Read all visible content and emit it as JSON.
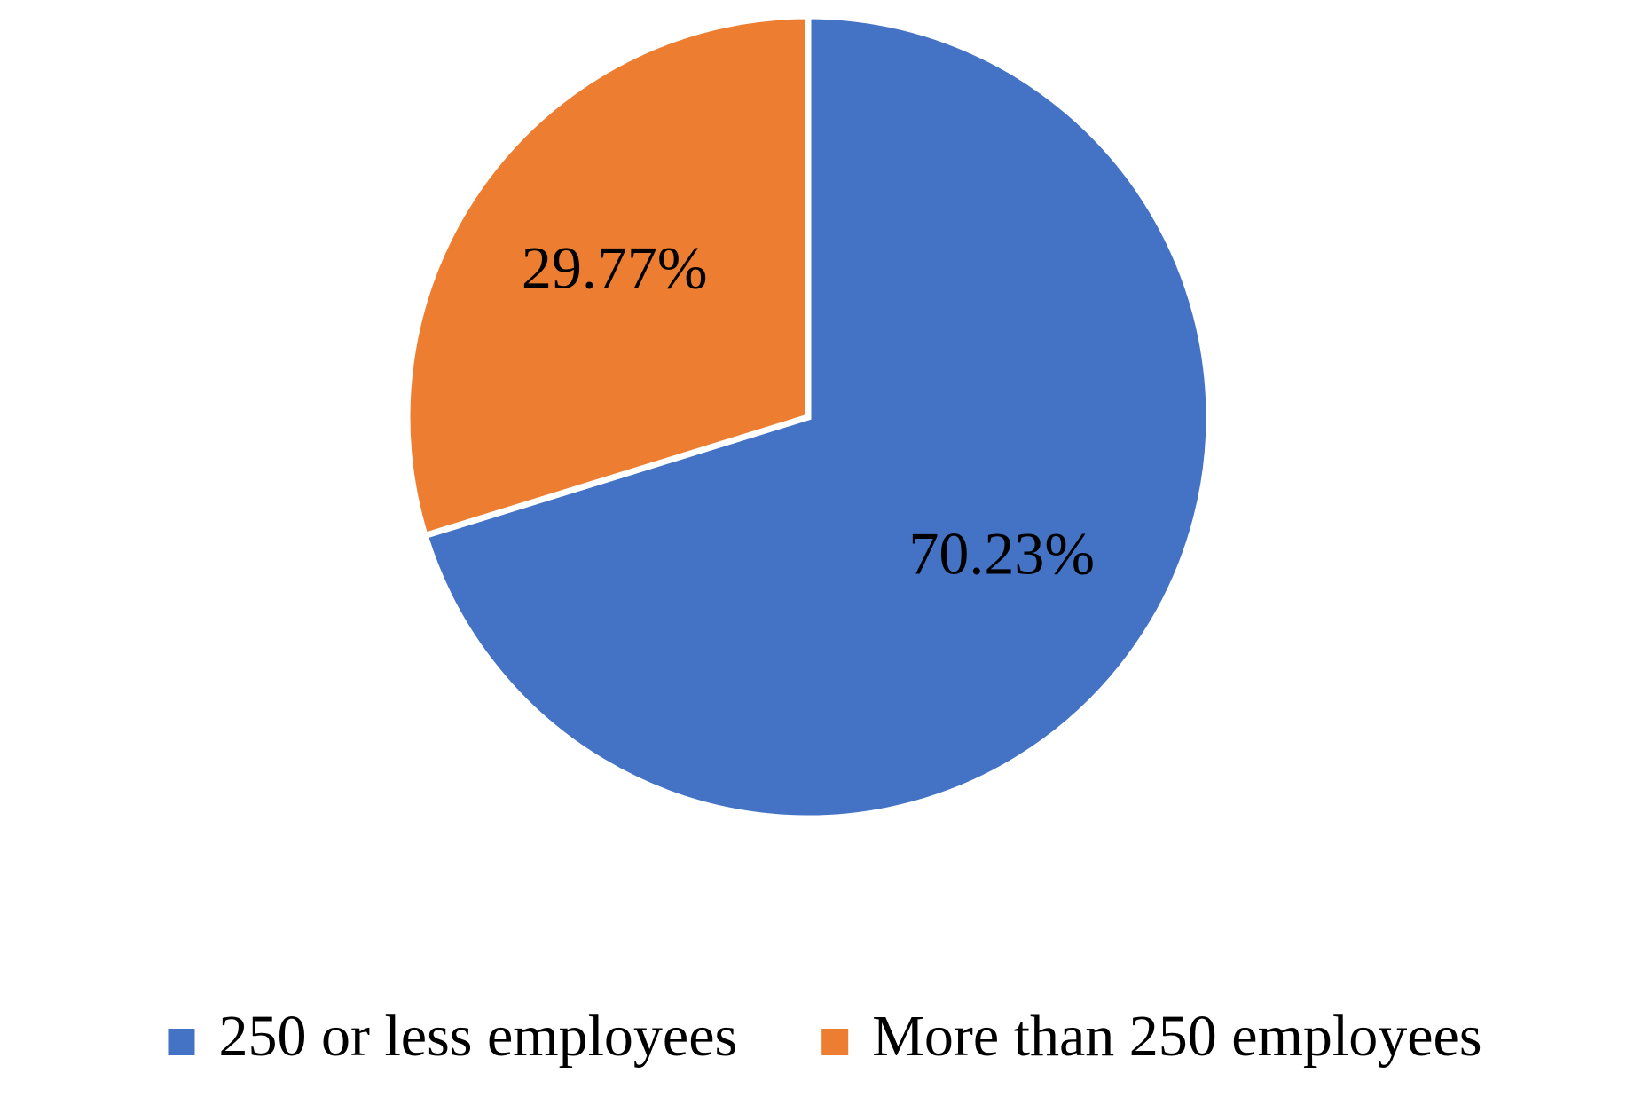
{
  "chart_data": {
    "type": "pie",
    "categories": [
      "250 or less employees",
      "More than 250 employees"
    ],
    "values": [
      70.23,
      29.77
    ],
    "value_labels": [
      "70.23%",
      "29.77%"
    ],
    "colors": [
      "#4472c4",
      "#ed7d31"
    ],
    "legend": "bottom"
  }
}
